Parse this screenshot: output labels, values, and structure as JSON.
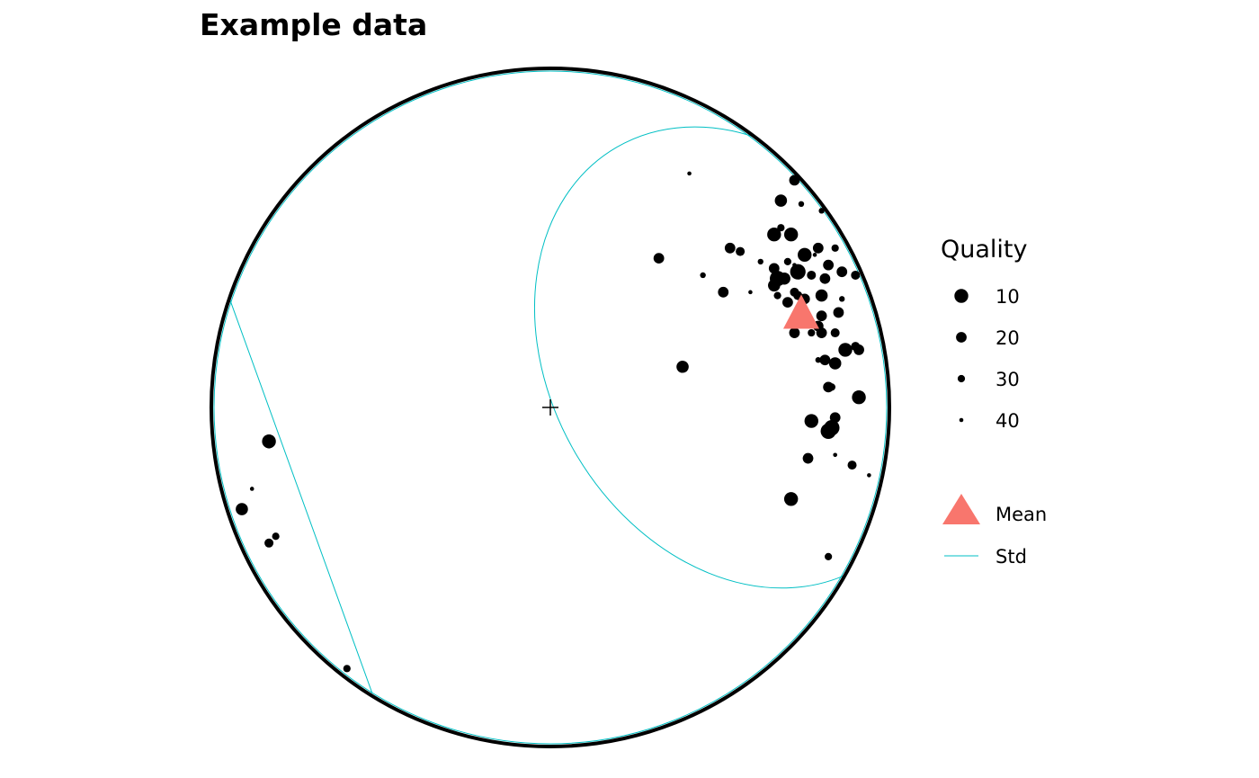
{
  "chart_data": {
    "type": "scatter",
    "title": "Example data",
    "projection": "stereonet (lower hemisphere)",
    "size_legend": {
      "title": "Quality",
      "entries": [
        {
          "label": "10",
          "value": 10
        },
        {
          "label": "20",
          "value": 20
        },
        {
          "label": "30",
          "value": 30
        },
        {
          "label": "40",
          "value": 40
        }
      ]
    },
    "layers_legend": [
      {
        "key": "mean",
        "label": "Mean",
        "color": "#F8766D",
        "symbol": "triangle"
      },
      {
        "key": "std",
        "label": "Std",
        "color": "#00BFC4",
        "symbol": "line"
      }
    ],
    "mean": {
      "x": 0.74,
      "y": 0.28
    },
    "std_cone": {
      "cx": 0.74,
      "cy": 0.28,
      "r": 0.62
    },
    "points": [
      {
        "x": 0.41,
        "y": 0.69,
        "q": 40
      },
      {
        "x": 0.72,
        "y": 0.67,
        "q": 20
      },
      {
        "x": 0.68,
        "y": 0.61,
        "q": 15
      },
      {
        "x": 0.74,
        "y": 0.6,
        "q": 35
      },
      {
        "x": 0.8,
        "y": 0.58,
        "q": 35
      },
      {
        "x": 0.68,
        "y": 0.53,
        "q": 30
      },
      {
        "x": 0.66,
        "y": 0.51,
        "q": 10
      },
      {
        "x": 0.71,
        "y": 0.51,
        "q": 10
      },
      {
        "x": 0.79,
        "y": 0.47,
        "q": 20
      },
      {
        "x": 0.84,
        "y": 0.47,
        "q": 30
      },
      {
        "x": 0.32,
        "y": 0.44,
        "q": 20
      },
      {
        "x": 0.53,
        "y": 0.47,
        "q": 20
      },
      {
        "x": 0.56,
        "y": 0.46,
        "q": 25
      },
      {
        "x": 0.62,
        "y": 0.43,
        "q": 35
      },
      {
        "x": 0.7,
        "y": 0.43,
        "q": 30
      },
      {
        "x": 0.75,
        "y": 0.45,
        "q": 10
      },
      {
        "x": 0.78,
        "y": 0.45,
        "q": 40
      },
      {
        "x": 0.72,
        "y": 0.42,
        "q": 40
      },
      {
        "x": 0.86,
        "y": 0.4,
        "q": 20
      },
      {
        "x": 0.9,
        "y": 0.39,
        "q": 25
      },
      {
        "x": 0.45,
        "y": 0.39,
        "q": 35
      },
      {
        "x": 0.66,
        "y": 0.41,
        "q": 20
      },
      {
        "x": 0.73,
        "y": 0.4,
        "q": 5
      },
      {
        "x": 0.67,
        "y": 0.38,
        "q": 5
      },
      {
        "x": 0.66,
        "y": 0.36,
        "q": 15
      },
      {
        "x": 0.69,
        "y": 0.38,
        "q": 15
      },
      {
        "x": 0.81,
        "y": 0.38,
        "q": 20
      },
      {
        "x": 0.82,
        "y": 0.42,
        "q": 20
      },
      {
        "x": 0.77,
        "y": 0.39,
        "q": 25
      },
      {
        "x": 0.67,
        "y": 0.33,
        "q": 30
      },
      {
        "x": 0.51,
        "y": 0.34,
        "q": 20
      },
      {
        "x": 0.59,
        "y": 0.34,
        "q": 40
      },
      {
        "x": 0.72,
        "y": 0.34,
        "q": 25
      },
      {
        "x": 0.73,
        "y": 0.33,
        "q": 25
      },
      {
        "x": 0.75,
        "y": 0.32,
        "q": 20
      },
      {
        "x": 0.8,
        "y": 0.33,
        "q": 15
      },
      {
        "x": 0.86,
        "y": 0.32,
        "q": 35
      },
      {
        "x": 0.7,
        "y": 0.31,
        "q": 20
      },
      {
        "x": 0.8,
        "y": 0.27,
        "q": 20
      },
      {
        "x": 0.85,
        "y": 0.28,
        "q": 20
      },
      {
        "x": 0.76,
        "y": 0.26,
        "q": 30
      },
      {
        "x": 0.79,
        "y": 0.24,
        "q": 20
      },
      {
        "x": 0.84,
        "y": 0.22,
        "q": 25
      },
      {
        "x": 0.8,
        "y": 0.22,
        "q": 20
      },
      {
        "x": 0.77,
        "y": 0.22,
        "q": 30
      },
      {
        "x": 0.72,
        "y": 0.22,
        "q": 20
      },
      {
        "x": 0.87,
        "y": 0.17,
        "q": 10
      },
      {
        "x": 0.91,
        "y": 0.17,
        "q": 20
      },
      {
        "x": 0.9,
        "y": 0.18,
        "q": 25
      },
      {
        "x": 0.79,
        "y": 0.14,
        "q": 35
      },
      {
        "x": 0.81,
        "y": 0.14,
        "q": 20
      },
      {
        "x": 0.84,
        "y": 0.13,
        "q": 15
      },
      {
        "x": 0.39,
        "y": 0.12,
        "q": 15
      },
      {
        "x": 0.83,
        "y": 0.06,
        "q": 30
      },
      {
        "x": 0.82,
        "y": 0.06,
        "q": 20
      },
      {
        "x": 0.84,
        "y": -0.03,
        "q": 20
      },
      {
        "x": 0.77,
        "y": -0.04,
        "q": 10
      },
      {
        "x": 0.82,
        "y": -0.07,
        "q": 5
      },
      {
        "x": 0.83,
        "y": -0.06,
        "q": 5
      },
      {
        "x": 0.91,
        "y": 0.03,
        "q": 10
      },
      {
        "x": 0.76,
        "y": -0.15,
        "q": 20
      },
      {
        "x": 0.84,
        "y": -0.14,
        "q": 40
      },
      {
        "x": 0.89,
        "y": -0.17,
        "q": 25
      },
      {
        "x": 0.94,
        "y": -0.2,
        "q": 40
      },
      {
        "x": 0.71,
        "y": -0.27,
        "q": 10
      },
      {
        "x": 0.82,
        "y": -0.44,
        "q": 30
      },
      {
        "x": -0.83,
        "y": -0.1,
        "q": 10
      },
      {
        "x": -0.83,
        "y": -0.11,
        "q": 30
      },
      {
        "x": -0.88,
        "y": -0.24,
        "q": 40
      },
      {
        "x": -0.91,
        "y": -0.3,
        "q": 15
      },
      {
        "x": -0.81,
        "y": -0.38,
        "q": 30
      },
      {
        "x": -0.83,
        "y": -0.4,
        "q": 25
      },
      {
        "x": -0.6,
        "y": -0.77,
        "q": 30
      }
    ]
  }
}
